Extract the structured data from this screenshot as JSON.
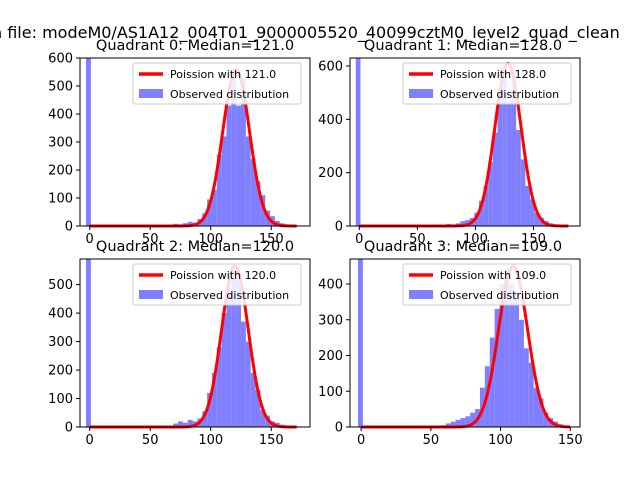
{
  "suptitle": "n file: modeM0/AS1A12_004T01_9000005520_40099cztM0_level2_quad_clean",
  "colors": {
    "hist": "#7f7fff",
    "fit": "#ff0000",
    "fit_overlap": "#ff8a80",
    "axis": "#000000"
  },
  "chart_data": [
    {
      "type": "bar",
      "title": "Quadrant 0: Median=121.0",
      "xlim": [
        -8,
        182
      ],
      "ylim": [
        0,
        600
      ],
      "xticks": [
        0,
        50,
        100,
        150
      ],
      "yticks": [
        0,
        100,
        200,
        300,
        400,
        500,
        600
      ],
      "bin_width": 4,
      "legend_position": "top-right",
      "hist_bins": [
        {
          "x": -1,
          "y": 600
        },
        {
          "x": 67,
          "y": 5
        },
        {
          "x": 71,
          "y": 8
        },
        {
          "x": 75,
          "y": 6
        },
        {
          "x": 79,
          "y": 10
        },
        {
          "x": 83,
          "y": 15
        },
        {
          "x": 87,
          "y": 12
        },
        {
          "x": 91,
          "y": 25
        },
        {
          "x": 95,
          "y": 45
        },
        {
          "x": 99,
          "y": 95
        },
        {
          "x": 103,
          "y": 130
        },
        {
          "x": 107,
          "y": 255
        },
        {
          "x": 111,
          "y": 320
        },
        {
          "x": 115,
          "y": 430
        },
        {
          "x": 119,
          "y": 540
        },
        {
          "x": 123,
          "y": 430
        },
        {
          "x": 127,
          "y": 530
        },
        {
          "x": 131,
          "y": 320
        },
        {
          "x": 135,
          "y": 240
        },
        {
          "x": 139,
          "y": 160
        },
        {
          "x": 143,
          "y": 110
        },
        {
          "x": 147,
          "y": 55
        },
        {
          "x": 151,
          "y": 35
        },
        {
          "x": 155,
          "y": 18
        },
        {
          "x": 159,
          "y": 10
        },
        {
          "x": 163,
          "y": 6
        },
        {
          "x": 167,
          "y": 3
        },
        {
          "x": 171,
          "y": 2
        }
      ],
      "fit": {
        "mean": 121.0,
        "sigma": 11.0,
        "peak": 560,
        "x_range": [
          0,
          171
        ]
      },
      "legend": [
        "Poission with 121.0",
        "Observed distribution"
      ]
    },
    {
      "type": "bar",
      "title": "Quadrant 1: Median=128.0",
      "xlim": [
        -8,
        190
      ],
      "ylim": [
        0,
        630
      ],
      "xticks": [
        0,
        50,
        100,
        150
      ],
      "yticks": [
        0,
        200,
        400,
        600
      ],
      "bin_width": 4,
      "legend_position": "top-right",
      "hist_bins": [
        {
          "x": -1,
          "y": 630
        },
        {
          "x": 73,
          "y": 5
        },
        {
          "x": 77,
          "y": 8
        },
        {
          "x": 81,
          "y": 6
        },
        {
          "x": 85,
          "y": 10
        },
        {
          "x": 89,
          "y": 18
        },
        {
          "x": 93,
          "y": 22
        },
        {
          "x": 97,
          "y": 30
        },
        {
          "x": 101,
          "y": 50
        },
        {
          "x": 105,
          "y": 95
        },
        {
          "x": 109,
          "y": 150
        },
        {
          "x": 113,
          "y": 240
        },
        {
          "x": 117,
          "y": 350
        },
        {
          "x": 121,
          "y": 500
        },
        {
          "x": 125,
          "y": 590
        },
        {
          "x": 129,
          "y": 460
        },
        {
          "x": 133,
          "y": 550
        },
        {
          "x": 137,
          "y": 360
        },
        {
          "x": 141,
          "y": 250
        },
        {
          "x": 145,
          "y": 150
        },
        {
          "x": 149,
          "y": 100
        },
        {
          "x": 153,
          "y": 50
        },
        {
          "x": 157,
          "y": 30
        },
        {
          "x": 161,
          "y": 18
        },
        {
          "x": 165,
          "y": 10
        },
        {
          "x": 169,
          "y": 6
        },
        {
          "x": 173,
          "y": 4
        },
        {
          "x": 177,
          "y": 2
        }
      ],
      "fit": {
        "mean": 128.0,
        "sigma": 11.3,
        "peak": 610,
        "x_range": [
          0,
          180
        ]
      },
      "legend": [
        "Poission with 128.0",
        "Observed distribution"
      ]
    },
    {
      "type": "bar",
      "title": "Quadrant 2: Median=120.0",
      "xlim": [
        -8,
        182
      ],
      "ylim": [
        0,
        590
      ],
      "xticks": [
        0,
        50,
        100,
        150
      ],
      "yticks": [
        0,
        100,
        200,
        300,
        400,
        500
      ],
      "bin_width": 4,
      "legend_position": "top-right",
      "hist_bins": [
        {
          "x": -1,
          "y": 590
        },
        {
          "x": 67,
          "y": 5
        },
        {
          "x": 71,
          "y": 12
        },
        {
          "x": 75,
          "y": 20
        },
        {
          "x": 79,
          "y": 15
        },
        {
          "x": 83,
          "y": 25
        },
        {
          "x": 87,
          "y": 20
        },
        {
          "x": 91,
          "y": 30
        },
        {
          "x": 95,
          "y": 55
        },
        {
          "x": 99,
          "y": 120
        },
        {
          "x": 103,
          "y": 190
        },
        {
          "x": 107,
          "y": 280
        },
        {
          "x": 111,
          "y": 400
        },
        {
          "x": 115,
          "y": 480
        },
        {
          "x": 119,
          "y": 550
        },
        {
          "x": 123,
          "y": 520
        },
        {
          "x": 127,
          "y": 370
        },
        {
          "x": 131,
          "y": 300
        },
        {
          "x": 135,
          "y": 190
        },
        {
          "x": 139,
          "y": 130
        },
        {
          "x": 143,
          "y": 60
        },
        {
          "x": 147,
          "y": 40
        },
        {
          "x": 151,
          "y": 20
        },
        {
          "x": 155,
          "y": 15
        },
        {
          "x": 159,
          "y": 8
        },
        {
          "x": 163,
          "y": 5
        },
        {
          "x": 167,
          "y": 3
        },
        {
          "x": 171,
          "y": 2
        }
      ],
      "fit": {
        "mean": 120.0,
        "sigma": 11.0,
        "peak": 565,
        "x_range": [
          0,
          171
        ]
      },
      "legend": [
        "Poission with 120.0",
        "Observed distribution"
      ]
    },
    {
      "type": "bar",
      "title": "Quadrant 3: Median=109.0",
      "xlim": [
        -8,
        157
      ],
      "ylim": [
        0,
        470
      ],
      "xticks": [
        0,
        50,
        100,
        150
      ],
      "yticks": [
        0,
        100,
        200,
        300,
        400
      ],
      "bin_width": 3.5,
      "legend_position": "top-right",
      "hist_bins": [
        {
          "x": -0.5,
          "y": 470
        },
        {
          "x": 59,
          "y": 5
        },
        {
          "x": 62.5,
          "y": 10
        },
        {
          "x": 66,
          "y": 15
        },
        {
          "x": 69.5,
          "y": 20
        },
        {
          "x": 73,
          "y": 25
        },
        {
          "x": 76.5,
          "y": 30
        },
        {
          "x": 80,
          "y": 40
        },
        {
          "x": 83.5,
          "y": 50
        },
        {
          "x": 87,
          "y": 110
        },
        {
          "x": 90.5,
          "y": 170
        },
        {
          "x": 94,
          "y": 250
        },
        {
          "x": 97.5,
          "y": 330
        },
        {
          "x": 101,
          "y": 400
        },
        {
          "x": 104.5,
          "y": 440
        },
        {
          "x": 108,
          "y": 400
        },
        {
          "x": 111.5,
          "y": 380
        },
        {
          "x": 115,
          "y": 300
        },
        {
          "x": 118.5,
          "y": 220
        },
        {
          "x": 122,
          "y": 180
        },
        {
          "x": 125.5,
          "y": 110
        },
        {
          "x": 129,
          "y": 80
        },
        {
          "x": 132.5,
          "y": 40
        },
        {
          "x": 136,
          "y": 25
        },
        {
          "x": 139.5,
          "y": 15
        },
        {
          "x": 143,
          "y": 8
        },
        {
          "x": 146.5,
          "y": 4
        }
      ],
      "fit": {
        "mean": 109.0,
        "sigma": 10.4,
        "peak": 450,
        "x_range": [
          0,
          150
        ]
      },
      "legend": [
        "Poission with 109.0",
        "Observed distribution"
      ]
    }
  ]
}
